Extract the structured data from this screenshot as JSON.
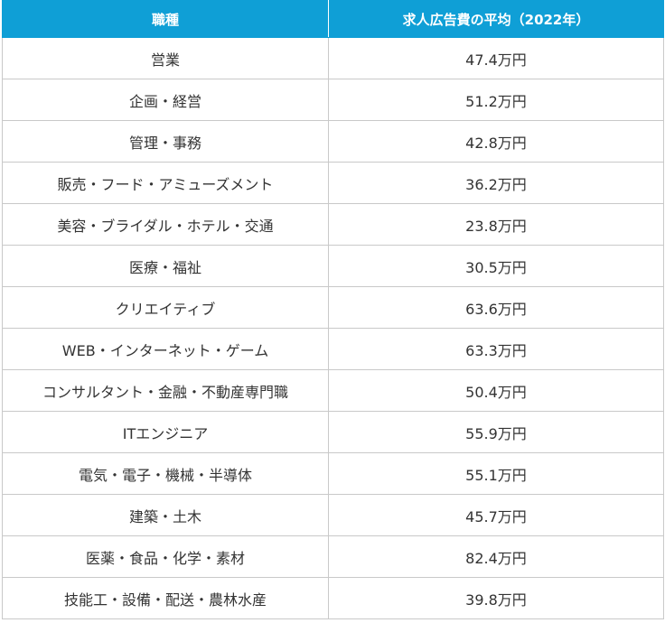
{
  "table": {
    "headers": [
      "職種",
      "求人広告費の平均（2022年）"
    ],
    "rows": [
      {
        "job": "営業",
        "avg": "47.4万円"
      },
      {
        "job": "企画・経営",
        "avg": "51.2万円"
      },
      {
        "job": "管理・事務",
        "avg": "42.8万円"
      },
      {
        "job": "販売・フード・アミューズメント",
        "avg": "36.2万円"
      },
      {
        "job": "美容・ブライダル・ホテル・交通",
        "avg": "23.8万円"
      },
      {
        "job": "医療・福祉",
        "avg": "30.5万円"
      },
      {
        "job": "クリエイティブ",
        "avg": "63.6万円"
      },
      {
        "job": "WEB・インターネット・ゲーム",
        "avg": "63.3万円"
      },
      {
        "job": "コンサルタント・金融・不動産専門職",
        "avg": "50.4万円"
      },
      {
        "job": "ITエンジニア",
        "avg": "55.9万円"
      },
      {
        "job": "電気・電子・機械・半導体",
        "avg": "55.1万円"
      },
      {
        "job": "建築・土木",
        "avg": "45.7万円"
      },
      {
        "job": "医薬・食品・化学・素材",
        "avg": "82.4万円"
      },
      {
        "job": "技能工・設備・配送・農林水産",
        "avg": "39.8万円"
      }
    ]
  },
  "colors": {
    "header_bg": "#0f9fd6",
    "header_text": "#ffffff",
    "border": "#c9c9c9",
    "cell_text": "#333333"
  }
}
